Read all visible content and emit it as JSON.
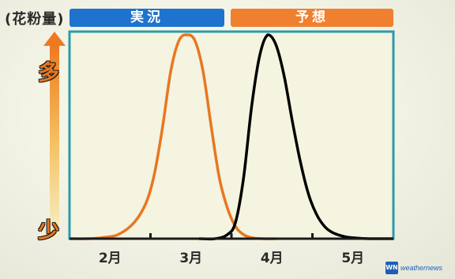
{
  "y_title": "(花粉量)",
  "header": {
    "actual": "実況",
    "forecast": "予想"
  },
  "y_axis": {
    "high": "多",
    "low": "少"
  },
  "logo": {
    "mark": "WN",
    "text": "weathernews"
  },
  "colors": {
    "actual": "#e87722",
    "forecast": "#000000",
    "header_actual": "#1e73cf",
    "header_forecast": "#ef8030",
    "frame": "#2d9aa8"
  },
  "chart_data": {
    "type": "line",
    "title": "",
    "xlabel": "",
    "ylabel": "(花粉量)",
    "x_tick_labels": [
      "2月",
      "3月",
      "4月",
      "5月"
    ],
    "xlim": [
      1.5,
      5.5
    ],
    "ylim": [
      0,
      100
    ],
    "grid": false,
    "series": [
      {
        "name": "実況",
        "color": "#e87722",
        "x": [
          1.5,
          1.7,
          1.9,
          2.1,
          2.3,
          2.45,
          2.55,
          2.65,
          2.75,
          2.85,
          2.95,
          3.05,
          3.15,
          3.25,
          3.35,
          3.45,
          3.55,
          3.65,
          3.75,
          3.9,
          4.05
        ],
        "y": [
          0,
          0,
          0.5,
          2,
          8,
          18,
          32,
          55,
          82,
          97,
          100,
          97,
          82,
          55,
          30,
          15,
          6,
          2,
          0.5,
          0,
          0
        ]
      },
      {
        "name": "予想",
        "color": "#000000",
        "x": [
          3.1,
          3.3,
          3.45,
          3.55,
          3.65,
          3.75,
          3.85,
          3.95,
          4.05,
          4.15,
          4.25,
          4.35,
          4.45,
          4.55,
          4.65,
          4.75,
          4.9,
          5.05,
          5.2,
          5.5
        ],
        "y": [
          0,
          0,
          2,
          8,
          30,
          65,
          90,
          100,
          95,
          80,
          58,
          38,
          22,
          12,
          6,
          3,
          1,
          0.3,
          0,
          0
        ]
      }
    ]
  }
}
